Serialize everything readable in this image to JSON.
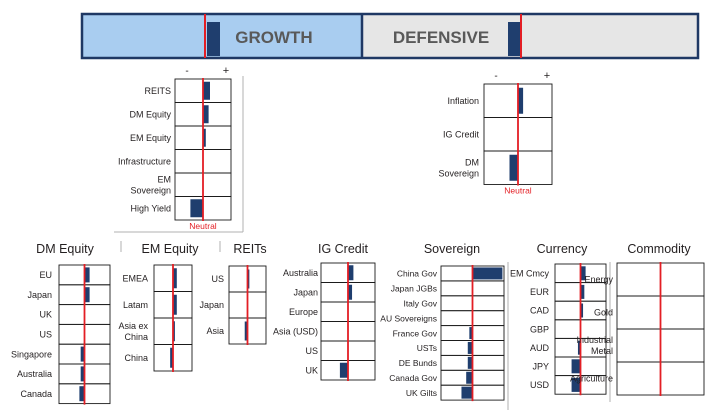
{
  "banner": {
    "growth_label": "GROWTH",
    "defensive_label": "DEFENSIVE",
    "growth_color": "#a9cdf0",
    "defensive_color": "#e6e6e6",
    "border_color": "#1f3864"
  },
  "colors": {
    "bar": "#1f3e6e",
    "neutral_line": "#e31e24",
    "neutral_text": "#e31e24",
    "grid": "#1a1a1a",
    "divider": "#b0b0b0"
  },
  "neutral_label": "Neutral",
  "axis_signs": {
    "minus": "-",
    "plus": "+"
  },
  "chart_data": [
    {
      "type": "bar",
      "panel": "growth-summary",
      "axis_marks": true,
      "show_neutral": true,
      "categories": [
        "REITS",
        "DM Equity",
        "EM Equity",
        "Infrastructure",
        "EM Sovereign",
        "High Yield"
      ],
      "values": [
        0.25,
        0.2,
        0.1,
        0,
        0,
        -0.45
      ],
      "xlim": [
        -1,
        1
      ]
    },
    {
      "type": "bar",
      "panel": "defensive-summary",
      "axis_marks": true,
      "show_neutral": true,
      "categories": [
        "Inflation",
        "IG Credit",
        "DM Sovereign"
      ],
      "values": [
        0.15,
        0,
        -0.25
      ],
      "xlim": [
        -1,
        1
      ]
    },
    {
      "type": "bar",
      "panel": "dm-equity",
      "title": "DM Equity",
      "categories": [
        "EU",
        "Japan",
        "UK",
        "US",
        "Singapore",
        "Australia",
        "Canada"
      ],
      "values": [
        0.2,
        0.2,
        0,
        0,
        -0.15,
        -0.15,
        -0.2
      ],
      "xlim": [
        -1,
        1
      ]
    },
    {
      "type": "bar",
      "panel": "em-equity",
      "title": "EM Equity",
      "categories": [
        "EMEA",
        "Latam",
        "Asia ex China",
        "China"
      ],
      "values": [
        0.2,
        0.2,
        0.1,
        -0.15
      ],
      "xlim": [
        -1,
        1
      ]
    },
    {
      "type": "bar",
      "panel": "reits",
      "title": "REITs",
      "categories": [
        "US",
        "Japan",
        "Asia"
      ],
      "values": [
        0.1,
        0,
        -0.15
      ],
      "xlim": [
        -1,
        1
      ]
    },
    {
      "type": "bar",
      "panel": "ig-credit",
      "title": "IG Credit",
      "categories": [
        "Australia",
        "Japan",
        "Europe",
        "Asia (USD)",
        "US",
        "UK"
      ],
      "values": [
        0.2,
        0.15,
        0,
        0,
        0,
        -0.3
      ],
      "xlim": [
        -1,
        1
      ]
    },
    {
      "type": "bar",
      "panel": "sovereign",
      "title": "Sovereign",
      "categories": [
        "China Gov",
        "Japan JGBs",
        "Italy Gov",
        "AU Sovereigns",
        "France Gov",
        "USTs",
        "DE Bunds",
        "Canada Gov",
        "UK Gilts"
      ],
      "values": [
        0.95,
        0,
        0,
        0,
        -0.1,
        -0.15,
        -0.15,
        -0.2,
        -0.35
      ],
      "xlim": [
        -1,
        1
      ]
    },
    {
      "type": "bar",
      "panel": "currency",
      "title": "Currency",
      "categories": [
        "EM Cmcy",
        "EUR",
        "CAD",
        "GBP",
        "AUD",
        "JPY",
        "USD"
      ],
      "values": [
        0.2,
        0.15,
        0.1,
        0,
        -0.1,
        -0.35,
        -0.35
      ],
      "xlim": [
        -1,
        1
      ]
    },
    {
      "type": "bar",
      "panel": "commodity",
      "title": "Commodity",
      "categories": [
        "Energy",
        "Gold",
        "Industrial Metal",
        "Agriculture"
      ],
      "values": [
        0,
        0,
        0,
        0
      ],
      "xlim": [
        -1,
        1
      ]
    }
  ]
}
